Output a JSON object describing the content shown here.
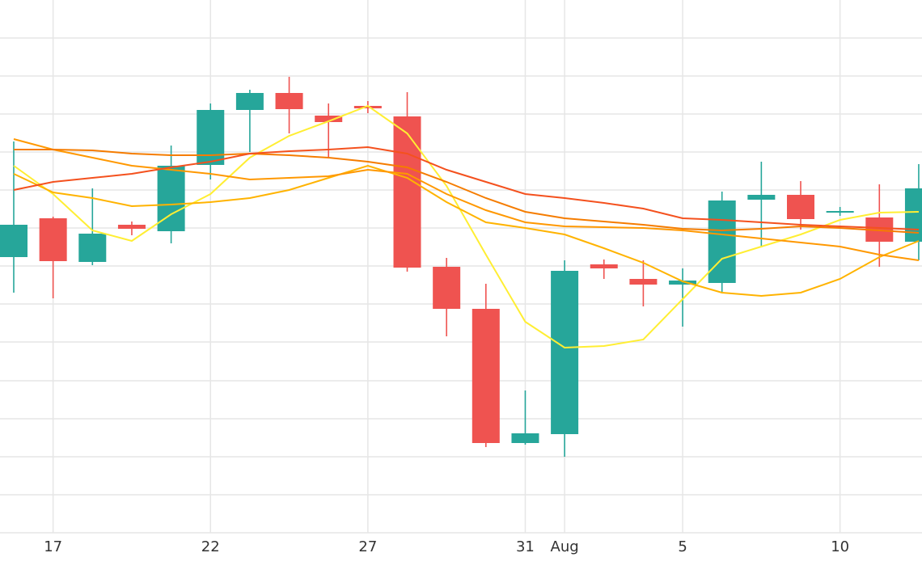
{
  "chart_data": {
    "type": "candlestick",
    "categories": [
      null,
      "17",
      null,
      null,
      null,
      "22",
      null,
      null,
      null,
      "27",
      null,
      null,
      null,
      "31",
      "Aug",
      null,
      null,
      "5",
      null,
      null,
      null,
      "10",
      null,
      null
    ],
    "open": [
      341,
      389,
      335,
      381,
      373,
      455,
      523,
      544,
      516,
      528,
      515,
      329,
      277,
      111,
      122,
      332,
      314,
      307,
      309,
      412,
      418,
      396,
      390,
      360
    ],
    "high": [
      484,
      391,
      426,
      385,
      479,
      531,
      548,
      564,
      531,
      534,
      545,
      340,
      308,
      176,
      337,
      338,
      337,
      327,
      422,
      459,
      435,
      403,
      431,
      456
    ],
    "low": [
      297,
      290,
      331,
      368,
      358,
      437,
      471,
      494,
      463,
      519,
      323,
      243,
      106,
      109,
      94,
      314,
      280,
      255,
      298,
      353,
      375,
      392,
      329,
      337
    ],
    "close": [
      381,
      336,
      370,
      376,
      454,
      523,
      544,
      524,
      508,
      525,
      328,
      277,
      111,
      123,
      324,
      327,
      307,
      312,
      411,
      418,
      388,
      398,
      360,
      426
    ],
    "up_color": "#26a69a",
    "down_color": "#ef5350",
    "overlays": [
      {
        "color": "#ffee33",
        "values": [
          454,
          419,
          374,
          361,
          394,
          419,
          464,
          491,
          509,
          528,
          494,
          429,
          344,
          261,
          229,
          231,
          239,
          289,
          339,
          354,
          369,
          387,
          396,
          397
        ]
      },
      {
        "color": "#ffb300",
        "values": [
          444,
          421,
          414,
          404,
          406,
          409,
          414,
          424,
          439,
          454,
          439,
          409,
          384,
          377,
          369,
          352,
          334,
          311,
          297,
          293,
          297,
          314,
          341,
          361
        ]
      },
      {
        "color": "#ff9800",
        "values": [
          487,
          474,
          464,
          454,
          449,
          444,
          437,
          439,
          441,
          449,
          444,
          419,
          399,
          384,
          379,
          378,
          377,
          374,
          369,
          364,
          359,
          354,
          344,
          337
        ]
      },
      {
        "color": "#f57c00",
        "values": [
          474,
          474,
          473,
          469,
          467,
          467,
          469,
          467,
          464,
          459,
          452,
          434,
          414,
          397,
          389,
          385,
          381,
          376,
          374,
          376,
          379,
          377,
          374,
          371
        ]
      },
      {
        "color": "#f4511e",
        "values": [
          424,
          434,
          439,
          444,
          452,
          459,
          469,
          472,
          474,
          477,
          469,
          449,
          434,
          419,
          414,
          408,
          401,
          389,
          387,
          384,
          381,
          379,
          377,
          375
        ]
      }
    ],
    "ylim": [
      0,
      659
    ],
    "yticks": [
      47,
      94,
      141,
      188,
      236,
      283,
      330,
      377,
      424,
      471,
      518,
      565,
      612
    ],
    "grid": true
  }
}
